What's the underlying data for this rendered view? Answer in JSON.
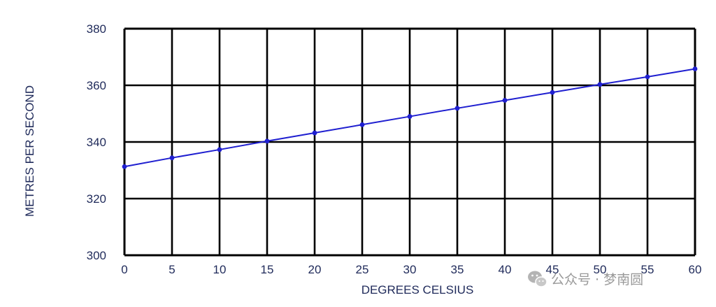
{
  "chart_data": {
    "type": "line",
    "title": "",
    "xlabel": "DEGREES CELSIUS",
    "ylabel": "METRES PER SECOND",
    "xlim": [
      0,
      60
    ],
    "ylim": [
      300,
      380
    ],
    "x_ticks": [
      0,
      5,
      10,
      15,
      20,
      25,
      30,
      35,
      40,
      45,
      50,
      55,
      60
    ],
    "y_ticks": [
      300,
      320,
      340,
      360,
      380
    ],
    "grid": true,
    "legend": "none",
    "series": [
      {
        "color": "#1f1fd0",
        "x": [
          0,
          5,
          10,
          15,
          20,
          25,
          30,
          35,
          40,
          45,
          50,
          55,
          60
        ],
        "y": [
          331.3,
          334.4,
          337.3,
          340.3,
          343.2,
          346.1,
          349.0,
          351.9,
          354.7,
          357.5,
          360.3,
          363.0,
          365.8
        ]
      }
    ]
  },
  "watermark": {
    "text": "公众号 · 梦南圆",
    "icon": "wechat-icon"
  },
  "colors": {
    "axis_text": "#1f2a5a",
    "grid": "#000000",
    "line": "#1f1fd0"
  }
}
